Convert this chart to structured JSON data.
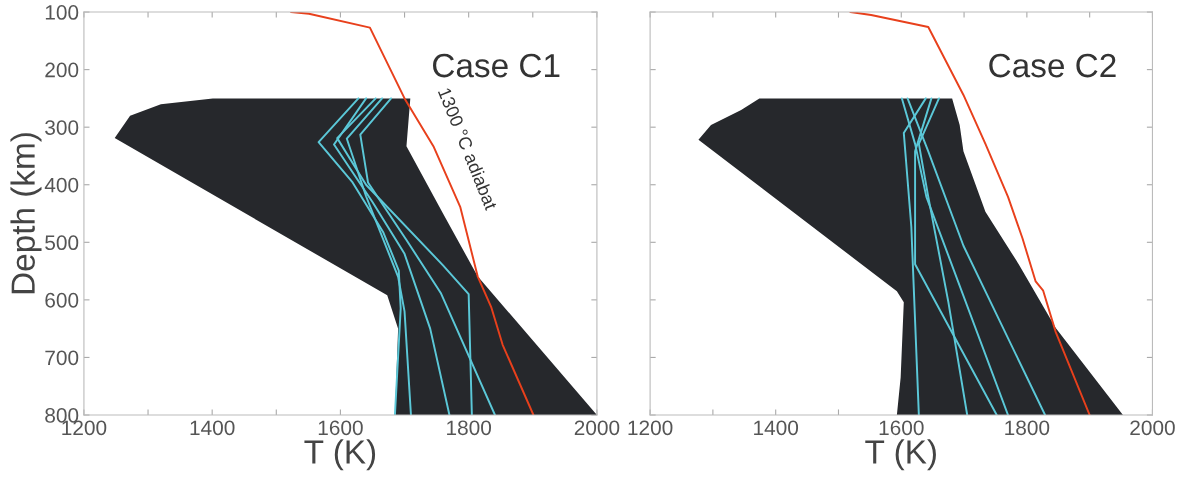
{
  "chart_data": [
    {
      "type": "line",
      "xlabel": "T (K)",
      "ylabel": "Depth (km)",
      "xlim": [
        1200,
        2000
      ],
      "ylim": [
        800,
        100
      ],
      "xticks": [
        1200,
        {
          "value": 1300,
          "label": null
        },
        1400,
        {
          "value": 1500,
          "label": null
        },
        1600,
        {
          "value": 1700,
          "label": null
        },
        1800,
        {
          "value": 1900,
          "label": null
        },
        2000
      ],
      "yticks": [
        100,
        200,
        300,
        400,
        500,
        600,
        700,
        800
      ],
      "grid": false,
      "legend": false,
      "annotations": [
        "Case C1",
        "1300 °C adiabat"
      ],
      "series": [
        {
          "type": "area",
          "color": "#26282c",
          "x": [
            1401,
            1709,
            1703,
            1760,
            1814,
            2000,
            1685,
            1690,
            1673,
            1248,
            1272,
            1320,
            1401
          ],
          "values": [
            250,
            250,
            333,
            450,
            559,
            800,
            800,
            650,
            592,
            319,
            280,
            260,
            250
          ]
        },
        {
          "color": "#5bc8d8",
          "x": [
            1628,
            1566,
            1619,
            1667,
            1691,
            1694,
            1685
          ],
          "values": [
            250,
            326,
            396,
            483,
            549,
            615,
            800
          ]
        },
        {
          "color": "#5bc8d8",
          "x": [
            1679,
            1631,
            1643,
            1703,
            1757,
            1841
          ],
          "values": [
            250,
            313,
            396,
            496,
            589,
            800
          ]
        },
        {
          "color": "#5bc8d8",
          "x": [
            1655,
            1595,
            1640,
            1760,
            1800,
            1805
          ],
          "values": [
            250,
            319,
            400,
            540,
            590,
            800
          ]
        },
        {
          "color": "#5bc8d8",
          "x": [
            1640,
            1590,
            1650,
            1700,
            1740,
            1770
          ],
          "values": [
            250,
            330,
            430,
            520,
            650,
            800
          ]
        },
        {
          "color": "#5bc8d8",
          "x": [
            1665,
            1610,
            1640,
            1690,
            1700,
            1710
          ],
          "values": [
            250,
            320,
            420,
            560,
            620,
            800
          ]
        },
        {
          "color": "#e8401c",
          "x": [
            1523,
            1551,
            1646,
            1700,
            1745,
            1787,
            1814,
            1835,
            1853,
            1901
          ],
          "values": [
            100,
            103,
            127,
            250,
            333,
            439,
            559,
            612,
            678,
            800
          ]
        }
      ]
    },
    {
      "type": "line",
      "xlabel": "T (K)",
      "xlim": [
        1200,
        2000
      ],
      "ylim": [
        800,
        100
      ],
      "tick_labels": "x",
      "xticks": [
        1200,
        {
          "value": 1300,
          "label": null
        },
        1400,
        {
          "value": 1500,
          "label": null
        },
        1600,
        {
          "value": 1700,
          "label": null
        },
        1800,
        {
          "value": 1900,
          "label": null
        },
        2000
      ],
      "yticks": [
        100,
        200,
        300,
        400,
        500,
        600,
        700,
        800
      ],
      "grid": false,
      "legend": false,
      "annotations": [
        "Case C2"
      ],
      "series": [
        {
          "type": "area",
          "color": "#26282c",
          "x": [
            1374,
            1681,
            1693,
            1699,
            1734,
            1787,
            1846,
            1953,
            1593,
            1599,
            1604,
            1593,
            1277,
            1297,
            1345,
            1374
          ],
          "values": [
            250,
            250,
            296,
            342,
            447,
            538,
            649,
            800,
            800,
            735,
            604,
            585,
            322,
            296,
            270,
            250
          ]
        },
        {
          "color": "#5bc8d8",
          "x": [
            1601,
            1622,
            1640,
            1770
          ],
          "values": [
            250,
            329,
            421,
            800
          ]
        },
        {
          "color": "#5bc8d8",
          "x": [
            1660,
            1628,
            1643,
            1675,
            1705
          ],
          "values": [
            250,
            329,
            421,
            604,
            800
          ]
        },
        {
          "color": "#5bc8d8",
          "x": [
            1610,
            1643,
            1699,
            1829
          ],
          "values": [
            250,
            342,
            506,
            800
          ]
        },
        {
          "color": "#5bc8d8",
          "x": [
            1639,
            1604,
            1616,
            1628
          ],
          "values": [
            250,
            310,
            473,
            800
          ]
        },
        {
          "color": "#5bc8d8",
          "x": [
            1648,
            1622,
            1622,
            1752
          ],
          "values": [
            250,
            342,
            538,
            800
          ]
        },
        {
          "color": "#e8401c",
          "x": [
            1519,
            1552,
            1643,
            1699,
            1734,
            1770,
            1793,
            1814,
            1826,
            1846,
            1900
          ],
          "values": [
            100,
            105,
            126,
            244,
            329,
            421,
            493,
            568,
            584,
            656,
            800
          ]
        }
      ]
    }
  ]
}
